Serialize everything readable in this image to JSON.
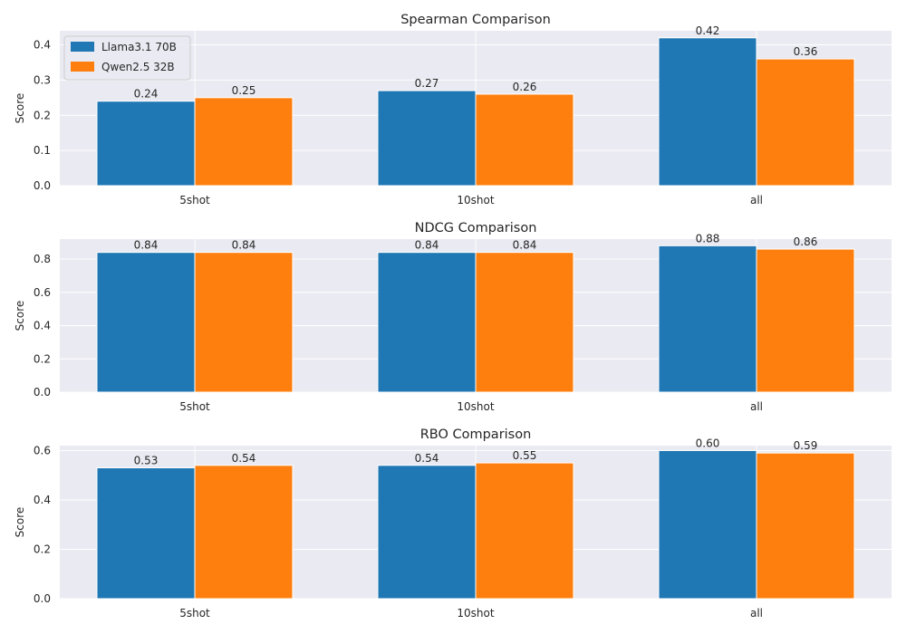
{
  "colors": {
    "series0": "#1f77b4",
    "series1": "#ff7f0e",
    "plot_bg": "#eaeaf2",
    "grid": "#ffffff",
    "text": "#262626"
  },
  "legend": {
    "placement": "top-left",
    "entries": [
      "Llama3.1 70B",
      "Qwen2.5 32B"
    ]
  },
  "chart_data": [
    {
      "type": "bar",
      "title": "Spearman Comparison",
      "ylabel": "Score",
      "categories": [
        "5shot",
        "10shot",
        "all"
      ],
      "ylim": [
        0,
        0.44
      ],
      "yticks": [
        "0.0",
        "0.1",
        "0.2",
        "0.3",
        "0.4"
      ],
      "ytick_values": [
        0,
        0.1,
        0.2,
        0.3,
        0.4
      ],
      "grid": true,
      "series": [
        {
          "name": "Llama3.1 70B",
          "values": [
            0.24,
            0.27,
            0.42
          ],
          "labels": [
            "0.24",
            "0.27",
            "0.42"
          ]
        },
        {
          "name": "Qwen2.5 32B",
          "values": [
            0.25,
            0.26,
            0.36
          ],
          "labels": [
            "0.25",
            "0.26",
            "0.36"
          ]
        }
      ]
    },
    {
      "type": "bar",
      "title": "NDCG Comparison",
      "ylabel": "Score",
      "categories": [
        "5shot",
        "10shot",
        "all"
      ],
      "ylim": [
        0,
        0.92
      ],
      "yticks": [
        "0.0",
        "0.2",
        "0.4",
        "0.6",
        "0.8"
      ],
      "ytick_values": [
        0,
        0.2,
        0.4,
        0.6,
        0.8
      ],
      "grid": true,
      "series": [
        {
          "name": "Llama3.1 70B",
          "values": [
            0.84,
            0.84,
            0.88
          ],
          "labels": [
            "0.84",
            "0.84",
            "0.88"
          ]
        },
        {
          "name": "Qwen2.5 32B",
          "values": [
            0.84,
            0.84,
            0.86
          ],
          "labels": [
            "0.84",
            "0.84",
            "0.86"
          ]
        }
      ]
    },
    {
      "type": "bar",
      "title": "RBO Comparison",
      "ylabel": "Score",
      "categories": [
        "5shot",
        "10shot",
        "all"
      ],
      "ylim": [
        0,
        0.62
      ],
      "yticks": [
        "0.0",
        "0.2",
        "0.4",
        "0.6"
      ],
      "ytick_values": [
        0,
        0.2,
        0.4,
        0.6
      ],
      "grid": true,
      "series": [
        {
          "name": "Llama3.1 70B",
          "values": [
            0.53,
            0.54,
            0.6
          ],
          "labels": [
            "0.53",
            "0.54",
            "0.60"
          ]
        },
        {
          "name": "Qwen2.5 32B",
          "values": [
            0.54,
            0.55,
            0.59
          ],
          "labels": [
            "0.54",
            "0.55",
            "0.59"
          ]
        }
      ]
    }
  ]
}
